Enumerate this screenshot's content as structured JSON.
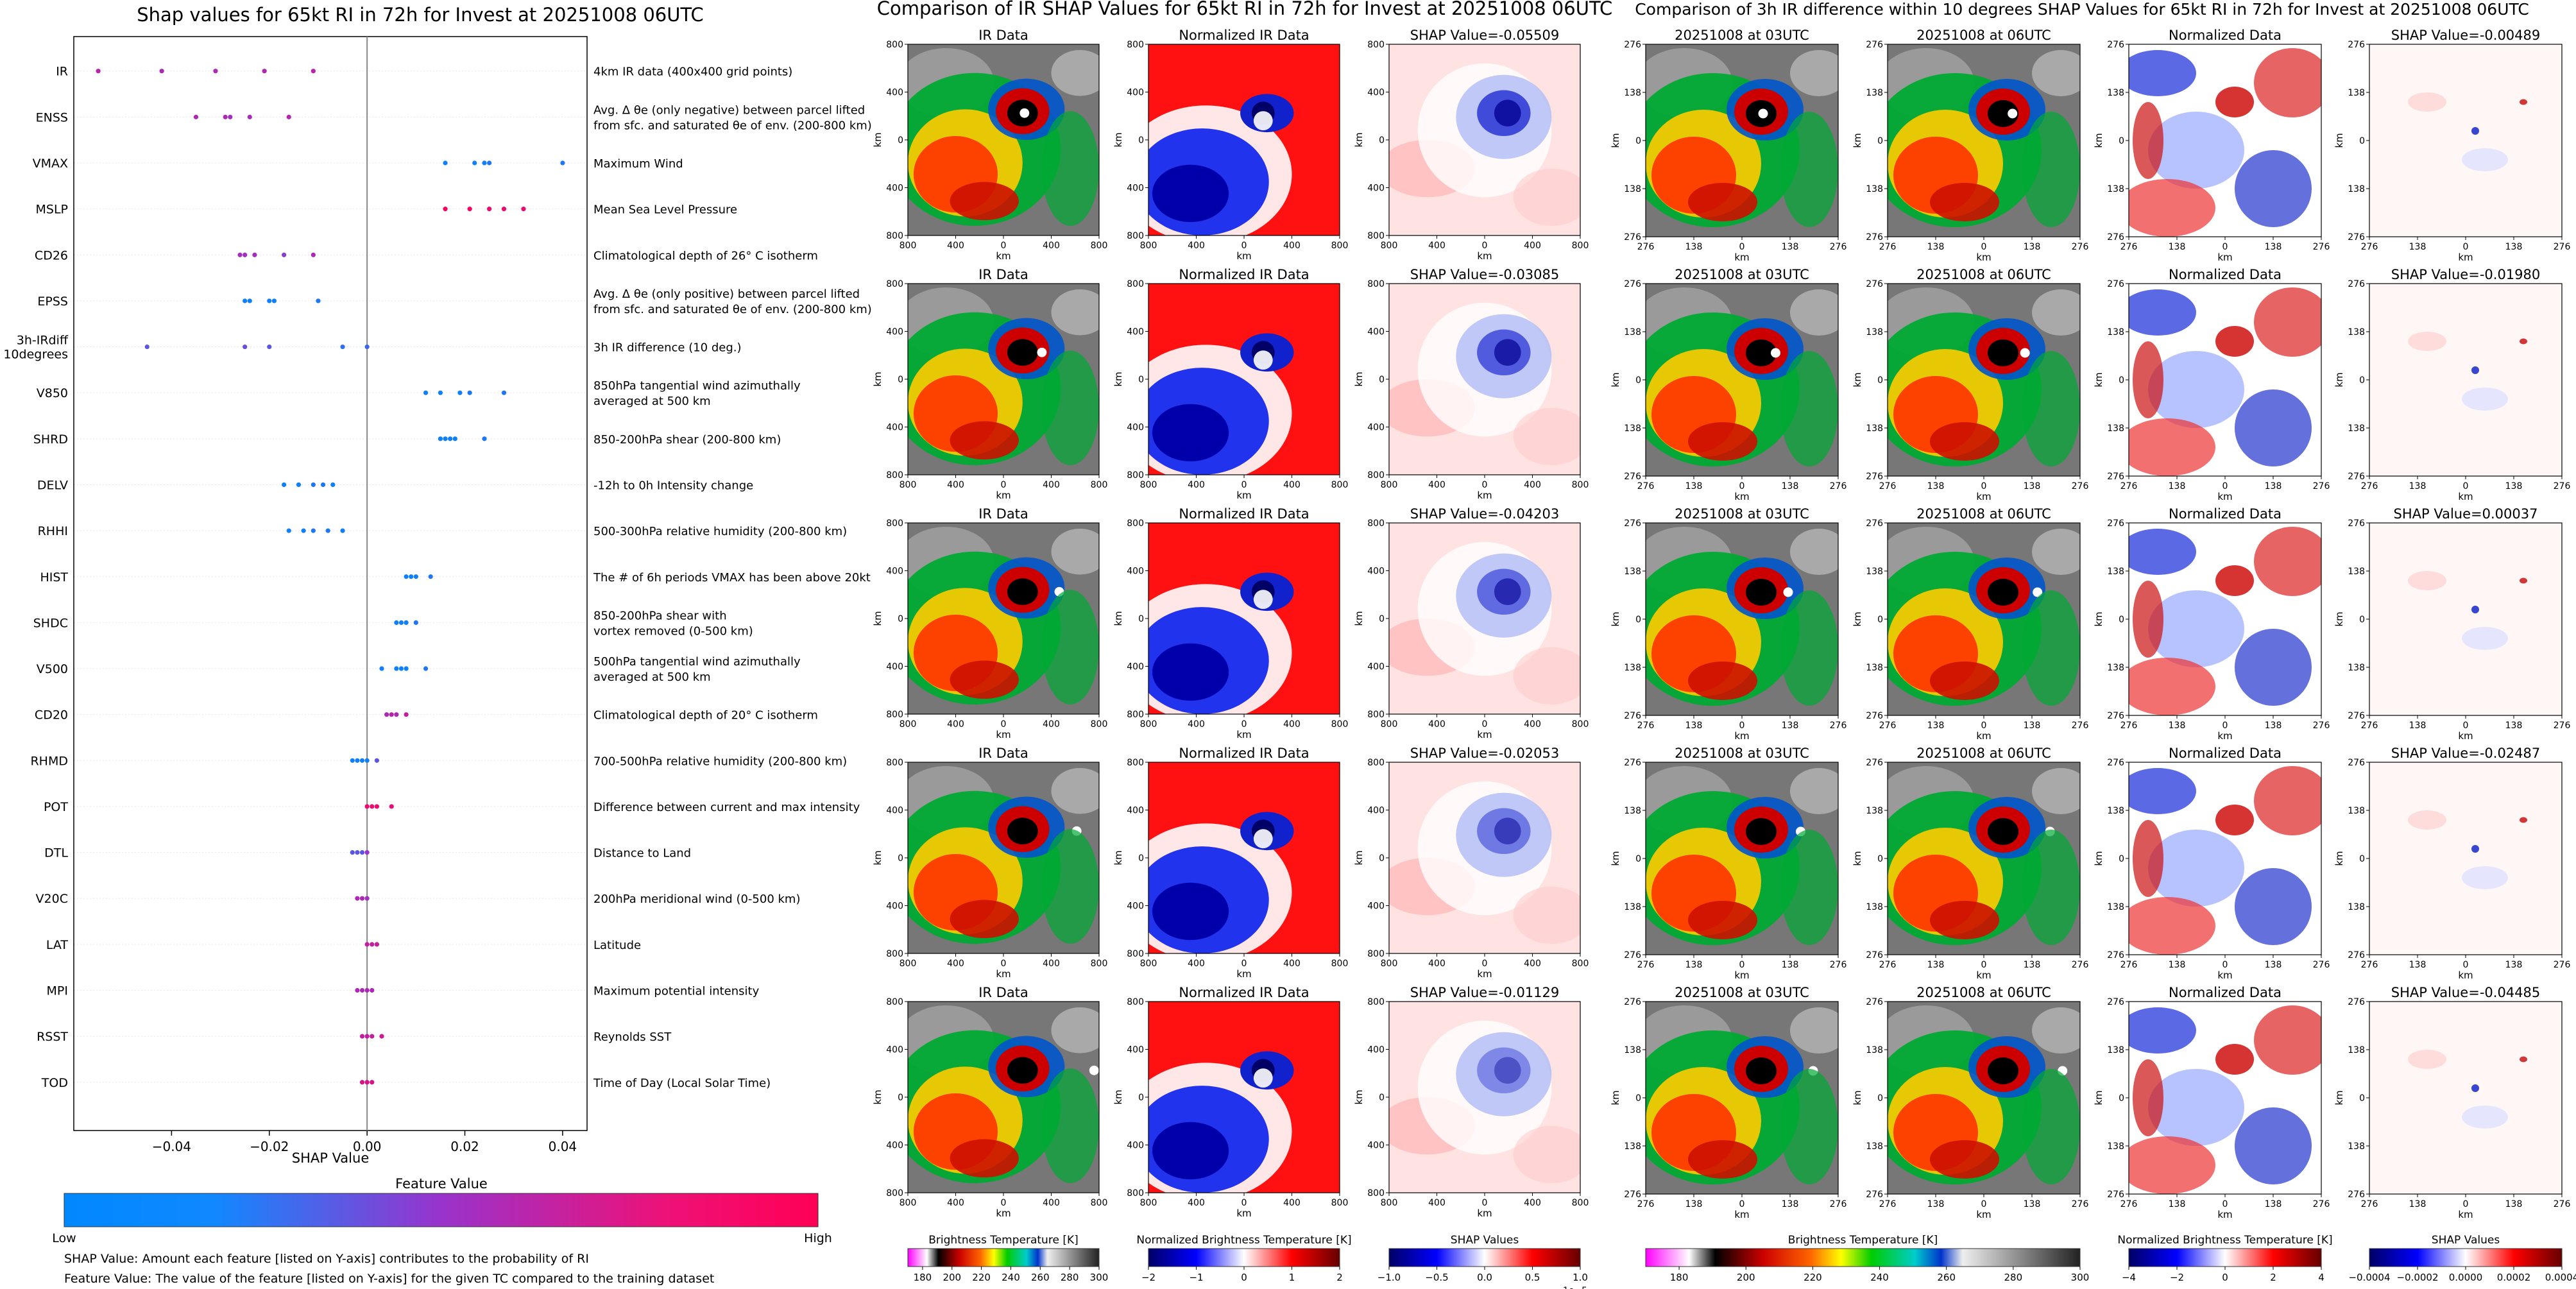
{
  "colors": {
    "low": "#0088ff",
    "mid": "#9933cc",
    "high": "#ff0055"
  },
  "chart_data": [
    {
      "type": "scatter",
      "title": "Shap values for 65kt RI in 72h for Invest at 20251008 06UTC",
      "xlabel": "SHAP Value",
      "xlim": [
        -0.06,
        0.045
      ],
      "xticks": [
        "−0.04",
        "−0.02",
        "0.00",
        "0.02",
        "0.04"
      ],
      "xtick_values": [
        -0.04,
        -0.02,
        0.0,
        0.02,
        0.04
      ],
      "features": [
        {
          "name": "IR",
          "desc": [
            "4km IR data (400x400 grid points)"
          ],
          "points": [
            {
              "x": -0.055,
              "v": 0.65
            },
            {
              "x": -0.042,
              "v": 0.6
            },
            {
              "x": -0.031,
              "v": 0.6
            },
            {
              "x": -0.021,
              "v": 0.62
            },
            {
              "x": -0.011,
              "v": 0.65
            }
          ]
        },
        {
          "name": "ENSS",
          "desc": [
            "Avg. Δ θe (only negative) between parcel lifted",
            "from sfc. and saturated θe of env. (200-800 km)"
          ],
          "points": [
            {
              "x": -0.035,
              "v": 0.6
            },
            {
              "x": -0.029,
              "v": 0.6
            },
            {
              "x": -0.028,
              "v": 0.55
            },
            {
              "x": -0.024,
              "v": 0.58
            },
            {
              "x": -0.016,
              "v": 0.62
            }
          ]
        },
        {
          "name": "VMAX",
          "desc": [
            "Maximum Wind"
          ],
          "points": [
            {
              "x": 0.016,
              "v": 0.05
            },
            {
              "x": 0.022,
              "v": 0.05
            },
            {
              "x": 0.024,
              "v": 0.05
            },
            {
              "x": 0.025,
              "v": 0.1
            },
            {
              "x": 0.04,
              "v": 0.1
            }
          ]
        },
        {
          "name": "MSLP",
          "desc": [
            "Mean Sea Level Pressure"
          ],
          "points": [
            {
              "x": 0.016,
              "v": 0.95
            },
            {
              "x": 0.021,
              "v": 0.95
            },
            {
              "x": 0.025,
              "v": 0.9
            },
            {
              "x": 0.028,
              "v": 0.9
            },
            {
              "x": 0.032,
              "v": 0.9
            }
          ]
        },
        {
          "name": "CD26",
          "desc": [
            "Climatological depth of 26° C isotherm"
          ],
          "points": [
            {
              "x": -0.026,
              "v": 0.55
            },
            {
              "x": -0.025,
              "v": 0.55
            },
            {
              "x": -0.023,
              "v": 0.55
            },
            {
              "x": -0.017,
              "v": 0.45
            },
            {
              "x": -0.011,
              "v": 0.6
            }
          ]
        },
        {
          "name": "EPSS",
          "desc": [
            "Avg. Δ θe (only positive) between parcel lifted",
            "from sfc. and saturated θe of env. (200-800 km)"
          ],
          "points": [
            {
              "x": -0.025,
              "v": 0.05
            },
            {
              "x": -0.024,
              "v": 0.05
            },
            {
              "x": -0.02,
              "v": 0.05
            },
            {
              "x": -0.019,
              "v": 0.05
            },
            {
              "x": -0.01,
              "v": 0.1
            }
          ]
        },
        {
          "name": "3h-IRdiff\n10degrees",
          "desc": [
            "3h IR difference (10 deg.)"
          ],
          "points": [
            {
              "x": -0.045,
              "v": 0.3
            },
            {
              "x": -0.025,
              "v": 0.35
            },
            {
              "x": -0.02,
              "v": 0.3
            },
            {
              "x": -0.005,
              "v": 0.15
            },
            {
              "x": 0.0,
              "v": 0.2
            }
          ]
        },
        {
          "name": "V850",
          "desc": [
            "850hPa tangential wind azimuthally",
            "averaged at 500 km"
          ],
          "points": [
            {
              "x": 0.012,
              "v": 0.05
            },
            {
              "x": 0.015,
              "v": 0.05
            },
            {
              "x": 0.019,
              "v": 0.05
            },
            {
              "x": 0.021,
              "v": 0.1
            },
            {
              "x": 0.028,
              "v": 0.1
            }
          ]
        },
        {
          "name": "SHRD",
          "desc": [
            "850-200hPa shear (200-800 km)"
          ],
          "points": [
            {
              "x": 0.015,
              "v": 0.05
            },
            {
              "x": 0.016,
              "v": 0.05
            },
            {
              "x": 0.017,
              "v": 0.05
            },
            {
              "x": 0.018,
              "v": 0.05
            },
            {
              "x": 0.024,
              "v": 0.1
            }
          ]
        },
        {
          "name": "DELV",
          "desc": [
            "-12h to 0h Intensity change"
          ],
          "points": [
            {
              "x": -0.017,
              "v": 0.05
            },
            {
              "x": -0.014,
              "v": 0.05
            },
            {
              "x": -0.011,
              "v": 0.1
            },
            {
              "x": -0.009,
              "v": 0.1
            },
            {
              "x": -0.007,
              "v": 0.05
            }
          ]
        },
        {
          "name": "RHHI",
          "desc": [
            "500-300hPa relative humidity (200-800 km)"
          ],
          "points": [
            {
              "x": -0.016,
              "v": 0.05
            },
            {
              "x": -0.013,
              "v": 0.05
            },
            {
              "x": -0.011,
              "v": 0.1
            },
            {
              "x": -0.008,
              "v": 0.1
            },
            {
              "x": -0.005,
              "v": 0.05
            }
          ]
        },
        {
          "name": "HIST",
          "desc": [
            "The # of 6h periods VMAX has been above 20kt"
          ],
          "points": [
            {
              "x": 0.008,
              "v": 0.05
            },
            {
              "x": 0.009,
              "v": 0.05
            },
            {
              "x": 0.01,
              "v": 0.05
            },
            {
              "x": 0.013,
              "v": 0.1
            }
          ]
        },
        {
          "name": "SHDC",
          "desc": [
            "850-200hPa shear with",
            "vortex removed (0-500 km)"
          ],
          "points": [
            {
              "x": 0.006,
              "v": 0.05
            },
            {
              "x": 0.007,
              "v": 0.05
            },
            {
              "x": 0.008,
              "v": 0.05
            },
            {
              "x": 0.01,
              "v": 0.1
            }
          ]
        },
        {
          "name": "V500",
          "desc": [
            "500hPa tangential wind azimuthally",
            "averaged at 500 km"
          ],
          "points": [
            {
              "x": 0.003,
              "v": 0.05
            },
            {
              "x": 0.006,
              "v": 0.05
            },
            {
              "x": 0.007,
              "v": 0.05
            },
            {
              "x": 0.008,
              "v": 0.05
            },
            {
              "x": 0.012,
              "v": 0.1
            }
          ]
        },
        {
          "name": "CD20",
          "desc": [
            "Climatological depth of 20° C isotherm"
          ],
          "points": [
            {
              "x": 0.004,
              "v": 0.6
            },
            {
              "x": 0.005,
              "v": 0.65
            },
            {
              "x": 0.006,
              "v": 0.6
            },
            {
              "x": 0.008,
              "v": 0.7
            }
          ]
        },
        {
          "name": "RHMD",
          "desc": [
            "700-500hPa relative humidity (200-800 km)"
          ],
          "points": [
            {
              "x": -0.003,
              "v": 0.05
            },
            {
              "x": -0.002,
              "v": 0.05
            },
            {
              "x": -0.001,
              "v": 0.05
            },
            {
              "x": 0.0,
              "v": 0.05
            },
            {
              "x": 0.002,
              "v": 0.3
            }
          ]
        },
        {
          "name": "POT",
          "desc": [
            "Difference between current and max intensity"
          ],
          "points": [
            {
              "x": 0.0,
              "v": 0.9
            },
            {
              "x": 0.001,
              "v": 0.9
            },
            {
              "x": 0.002,
              "v": 0.9
            },
            {
              "x": 0.005,
              "v": 0.85
            }
          ]
        },
        {
          "name": "DTL",
          "desc": [
            "Distance to Land"
          ],
          "points": [
            {
              "x": -0.003,
              "v": 0.3
            },
            {
              "x": -0.002,
              "v": 0.3
            },
            {
              "x": -0.001,
              "v": 0.3
            },
            {
              "x": 0.0,
              "v": 0.5
            }
          ]
        },
        {
          "name": "V20C",
          "desc": [
            "200hPa meridional wind (0-500 km)"
          ],
          "points": [
            {
              "x": -0.002,
              "v": 0.6
            },
            {
              "x": -0.001,
              "v": 0.6
            },
            {
              "x": 0.0,
              "v": 0.55
            }
          ]
        },
        {
          "name": "LAT",
          "desc": [
            "Latitude"
          ],
          "points": [
            {
              "x": 0.0,
              "v": 0.7
            },
            {
              "x": 0.001,
              "v": 0.7
            },
            {
              "x": 0.002,
              "v": 0.7
            }
          ]
        },
        {
          "name": "MPI",
          "desc": [
            "Maximum potential intensity"
          ],
          "points": [
            {
              "x": -0.002,
              "v": 0.6
            },
            {
              "x": -0.001,
              "v": 0.6
            },
            {
              "x": 0.0,
              "v": 0.6
            },
            {
              "x": 0.001,
              "v": 0.6
            }
          ]
        },
        {
          "name": "RSST",
          "desc": [
            "Reynolds SST"
          ],
          "points": [
            {
              "x": -0.001,
              "v": 0.7
            },
            {
              "x": 0.0,
              "v": 0.7
            },
            {
              "x": 0.001,
              "v": 0.7
            },
            {
              "x": 0.003,
              "v": 0.75
            }
          ]
        },
        {
          "name": "TOD",
          "desc": [
            "Time of Day (Local Solar Time)"
          ],
          "points": [
            {
              "x": -0.001,
              "v": 0.8
            },
            {
              "x": 0.0,
              "v": 0.8
            },
            {
              "x": 0.001,
              "v": 0.8
            }
          ]
        }
      ],
      "colorbar": {
        "label": "Feature Value",
        "low": "Low",
        "high": "High"
      },
      "notes": [
        "SHAP Value: Amount each feature [listed on Y-axis] contributes to the probability of RI",
        "Feature Value: The value of the feature [listed on Y-axis] for the given TC compared to the training dataset"
      ]
    },
    {
      "type": "heatmap",
      "title": "Comparison of IR SHAP Values for 65kt RI in 72h for Invest at 20251008 06UTC",
      "column_titles": [
        "IR Data",
        "Normalized IR Data"
      ],
      "shap_titles": [
        "SHAP Value=-0.05509",
        "SHAP Value=-0.03085",
        "SHAP Value=-0.04203",
        "SHAP Value=-0.02053",
        "SHAP Value=-0.01129"
      ],
      "axis_label": "km",
      "ticks": [
        "800",
        "400",
        "0",
        "400",
        "800"
      ],
      "colorbars": [
        {
          "label": "Brightness Temperature [K]",
          "ticks": [
            "180",
            "200",
            "220",
            "240",
            "260",
            "280",
            "300"
          ],
          "scale": "ir"
        },
        {
          "label": "Normalized Brightness Temperature [K]",
          "ticks": [
            "−2",
            "−1",
            "0",
            "1",
            "2"
          ],
          "scale": "div"
        },
        {
          "label": "SHAP Values",
          "ticks": [
            "−1.0",
            "−0.5",
            "0.0",
            "0.5",
            "1.0"
          ],
          "scale": "div",
          "offset": "1e−5"
        }
      ]
    },
    {
      "type": "heatmap",
      "title": "Comparison of 3h IR difference within 10 degrees SHAP Values for 65kt RI in 72h for Invest at 20251008 06UTC",
      "column_titles": [
        "20251008 at 03UTC",
        "20251008 at 06UTC",
        "Normalized Data"
      ],
      "shap_titles": [
        "SHAP Value=-0.00489",
        "SHAP Value=-0.01980",
        "SHAP Value=0.00037",
        "SHAP Value=-0.02487",
        "SHAP Value=-0.04485"
      ],
      "axis_label": "km",
      "ticks": [
        "276",
        "138",
        "0",
        "138",
        "276"
      ],
      "colorbars": [
        {
          "label": "Brightness Temperature [K]",
          "ticks": [
            "180",
            "200",
            "220",
            "240",
            "260",
            "280",
            "300"
          ],
          "scale": "ir"
        },
        {
          "label": "Normalized Brightness Temperature [K]",
          "ticks": [
            "−4",
            "−2",
            "0",
            "2",
            "4"
          ],
          "scale": "div"
        },
        {
          "label": "SHAP Values",
          "ticks": [
            "−0.0004",
            "−0.0002",
            "0.0000",
            "0.0002",
            "0.0004"
          ],
          "scale": "div"
        }
      ]
    }
  ]
}
